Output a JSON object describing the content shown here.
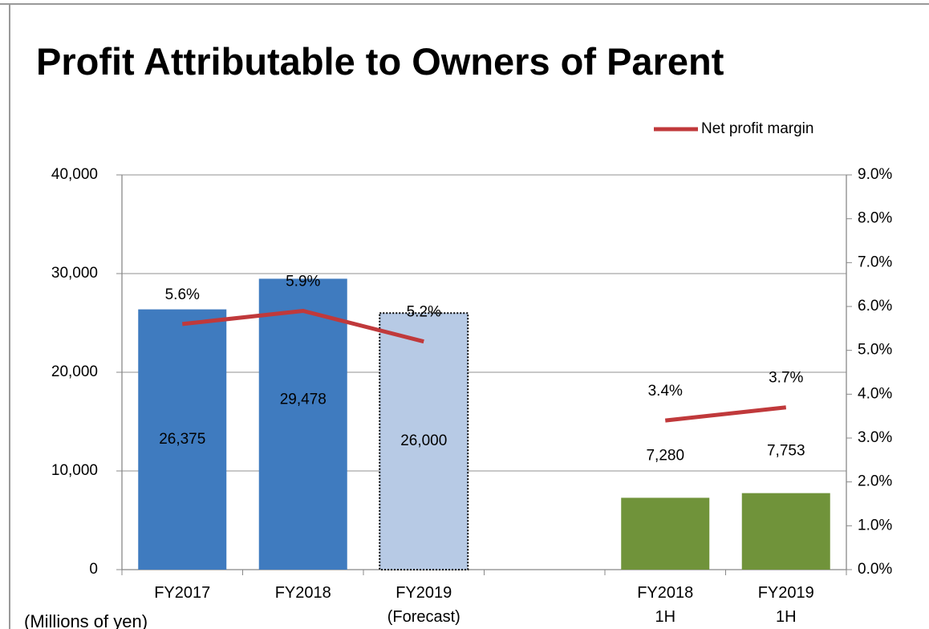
{
  "chart_data": {
    "type": "bar_line",
    "title": "Profit Attributable to Owners of Parent",
    "annotation": "(Millions of yen)",
    "categories": [
      "FY2017",
      "FY2018",
      "FY2019\n(Forecast)",
      null,
      "FY2018\n1H",
      "FY2019\n1H"
    ],
    "values": [
      26375,
      29478,
      26000,
      null,
      7280,
      7753
    ],
    "value_labels": [
      "26,375",
      "29,478",
      "26,000",
      null,
      "7,280",
      "7,753"
    ],
    "colors": [
      "#3f7bbf",
      "#3f7bbf",
      "#b7cae5",
      null,
      "#70933a",
      "#70933a"
    ],
    "borders": [
      null,
      null,
      "dotted",
      null,
      null,
      null
    ],
    "ylim": [
      0,
      40000
    ],
    "yticks": [
      0,
      {
        "value": 10000,
        "label": "10,000"
      },
      {
        "value": 20000,
        "label": "20,000"
      },
      {
        "value": 30000,
        "label": "30,000"
      },
      {
        "value": 40000,
        "label": "40,000"
      }
    ],
    "y2lim": [
      0,
      9
    ],
    "y2ticks": [
      {
        "value": 0,
        "label": "0.0%"
      },
      {
        "value": 1,
        "label": "1.0%"
      },
      {
        "value": 2,
        "label": "2.0%"
      },
      {
        "value": 3,
        "label": "3.0%"
      },
      {
        "value": 4,
        "label": "4.0%"
      },
      {
        "value": 5,
        "label": "5.0%"
      },
      {
        "value": 6,
        "label": "6.0%"
      },
      {
        "value": 7,
        "label": "7.0%"
      },
      {
        "value": 8,
        "label": "8.0%"
      },
      {
        "value": 9,
        "label": "9.0%"
      }
    ],
    "series": [
      {
        "name": "Net profit margin",
        "color": "#c0393b",
        "axis": "y2",
        "values": [
          5.6,
          5.9,
          5.2,
          null,
          3.4,
          3.7
        ],
        "value_labels": [
          "5.6%",
          "5.9%",
          "5.2%",
          null,
          "3.4%",
          "3.7%"
        ]
      }
    ],
    "grid": true,
    "legend": "top-right"
  }
}
